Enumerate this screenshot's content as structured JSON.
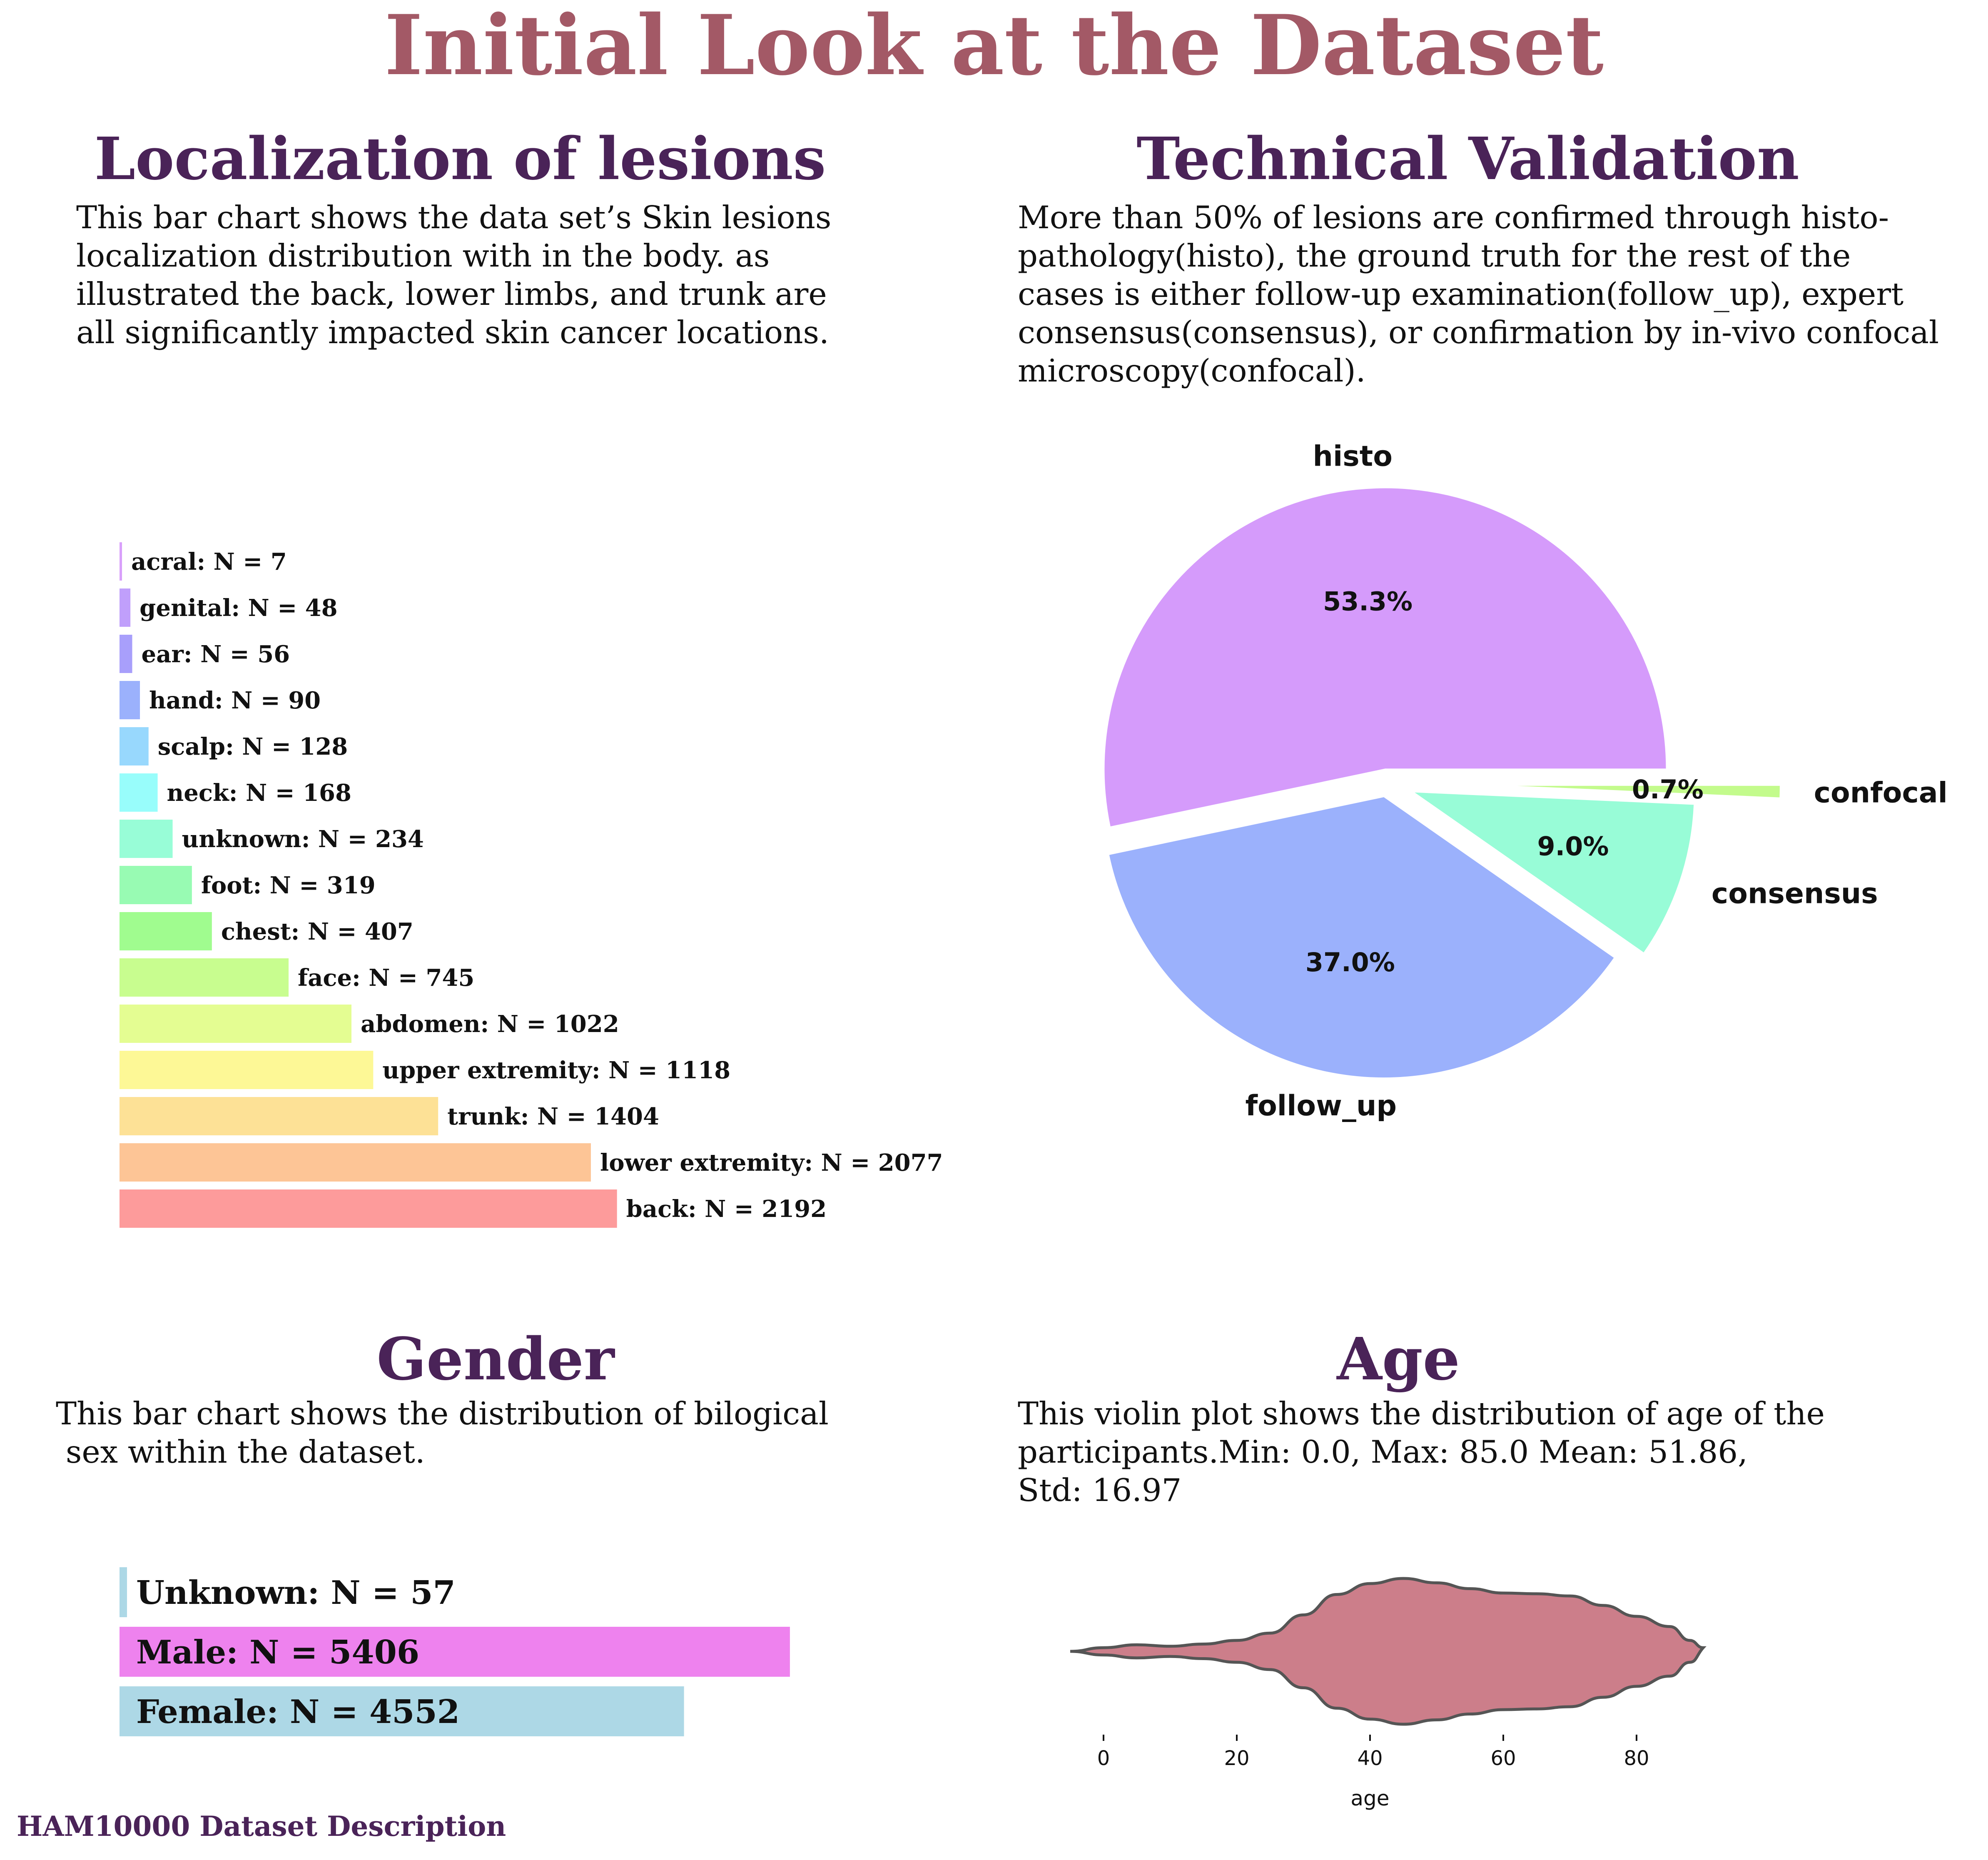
{
  "title": "Initial Look at the Dataset",
  "footer": "HAM10000 Dataset Description",
  "colors": {
    "title": "#a35966",
    "heading": "#4a2358",
    "text": "#111111",
    "pie_histo": "#d59bfb",
    "pie_follow_up": "#9bb1fc",
    "pie_consensus": "#98fcd7",
    "pie_confocal": "#c3fb8c",
    "gender_light": "#add8e6",
    "gender_male": "#ee82ee",
    "violin_fill": "#cc7e8a",
    "violin_edge": "#555555"
  },
  "sections": {
    "localization": {
      "heading": "Localization of lesions",
      "description": [
        "This bar chart shows the data set’s Skin lesions",
        "localization distribution with in the body. as",
        "illustrated the back, lower limbs, and trunk are",
        "all significantly impacted skin cancer locations."
      ]
    },
    "technical": {
      "heading": "Technical Validation",
      "description": [
        "More than 50% of lesions are confirmed through histo-",
        "pathology(histo), the ground truth for the rest of the",
        "cases is either follow-up examination(follow_up), expert",
        "consensus(consensus), or confirmation by in-vivo confocal",
        "microscopy(confocal)."
      ]
    },
    "gender": {
      "heading": "Gender",
      "description": [
        "This bar chart shows the distribution of bilogical",
        " sex within the dataset."
      ]
    },
    "age": {
      "heading": "Age",
      "description": [
        "This violin plot shows the distribution of age of the",
        "participants.Min: 0.0, Max: 85.0 Mean: 51.86,",
        "Std: 16.97"
      ]
    }
  },
  "chart_data": [
    {
      "type": "bar",
      "orientation": "horizontal",
      "categories": [
        "acral",
        "genital",
        "ear",
        "hand",
        "scalp",
        "neck",
        "unknown",
        "foot",
        "chest",
        "face",
        "abdomen",
        "upper extremity",
        "trunk",
        "lower extremity",
        "back"
      ],
      "values": [
        7,
        48,
        56,
        90,
        128,
        168,
        234,
        319,
        407,
        745,
        1022,
        1118,
        1404,
        2077,
        2192
      ],
      "labels": [
        "acral: N = 7",
        "genital: N = 48",
        "ear: N = 56",
        "hand: N = 90",
        "scalp: N = 128",
        "neck: N = 168",
        "unknown: N = 234",
        "foot: N = 319",
        "chest: N = 407",
        "face: N = 745",
        "abdomen: N = 1022",
        "upper extremity: N = 1118",
        "trunk: N = 1404",
        "lower extremity: N = 2077",
        "back: N = 2192"
      ],
      "colors": [
        "#d9a0fb",
        "#c09ffb",
        "#a89ffb",
        "#9bb1fc",
        "#98d8fd",
        "#98fdfb",
        "#98fdd7",
        "#98fbb3",
        "#a0fc8f",
        "#c8fd8f",
        "#e4fd92",
        "#fdf896",
        "#fde196",
        "#fdc596",
        "#fd9b9b"
      ],
      "axes_visible": false
    },
    {
      "type": "pie",
      "labels": [
        "histo",
        "follow_up",
        "consensus",
        "confocal"
      ],
      "values": [
        53.3,
        37.0,
        9.0,
        0.7
      ],
      "pct_labels": [
        "53.3%",
        "37.0%",
        "9.0%",
        "0.7%"
      ],
      "explode": [
        0.05,
        0.05,
        0.1,
        0.4
      ]
    },
    {
      "type": "bar",
      "orientation": "horizontal",
      "categories": [
        "Unknown",
        "Male",
        "Female"
      ],
      "values": [
        57,
        5406,
        4552
      ],
      "labels": [
        "Unknown: N = 57",
        "Male: N = 5406",
        "Female: N = 4552"
      ],
      "axes_visible": false
    },
    {
      "type": "violin",
      "xlabel": "age",
      "xticks": [
        0,
        20,
        40,
        60,
        80
      ],
      "xlim": [
        -5,
        92
      ],
      "stats": {
        "min": 0.0,
        "max": 85.0,
        "mean": 51.86,
        "std": 16.97
      },
      "density": {
        "x": [
          -5,
          0,
          5,
          10,
          15,
          20,
          25,
          30,
          35,
          40,
          45,
          50,
          55,
          60,
          65,
          70,
          75,
          80,
          85,
          88,
          90
        ],
        "y": [
          0,
          0.05,
          0.09,
          0.07,
          0.1,
          0.15,
          0.25,
          0.5,
          0.78,
          0.93,
          1.0,
          0.94,
          0.86,
          0.8,
          0.79,
          0.76,
          0.63,
          0.48,
          0.34,
          0.15,
          0.05
        ]
      }
    }
  ]
}
